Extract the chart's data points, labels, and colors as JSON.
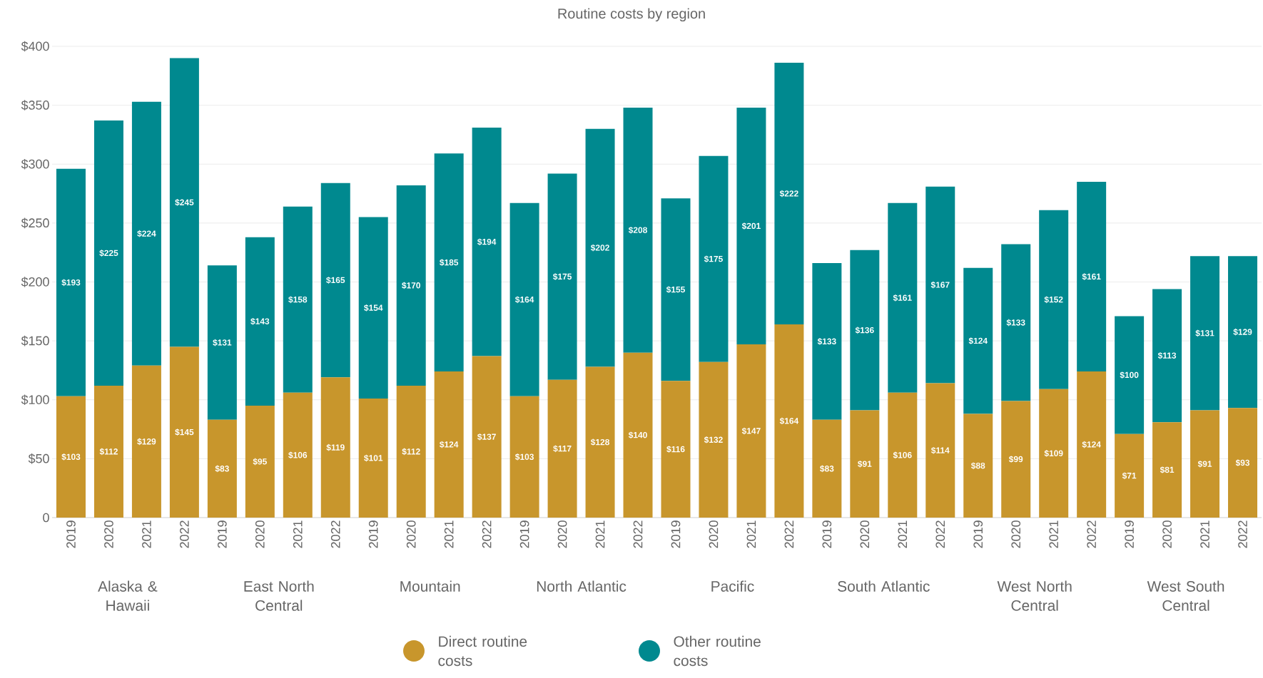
{
  "chart_data": {
    "type": "bar",
    "title": "Routine costs by region",
    "stacked": true,
    "grid": "y",
    "legend": "bottom",
    "categories": [
      "2019",
      "2020",
      "2021",
      "2022",
      "2019",
      "2020",
      "2021",
      "2022",
      "2019",
      "2020",
      "2021",
      "2022",
      "2019",
      "2020",
      "2021",
      "2022",
      "2019",
      "2020",
      "2021",
      "2022",
      "2019",
      "2020",
      "2021",
      "2022",
      "2019",
      "2020",
      "2021",
      "2022",
      "2019",
      "2020",
      "2021",
      "2022"
    ],
    "annotations": [
      "Alaska & Hawaii",
      "East North Central",
      "Mountain",
      "North Atlantic",
      "Pacific",
      "South Atlantic",
      "West North Central",
      "West South Central"
    ],
    "ylim": [
      0,
      400
    ],
    "yticks": [
      0,
      {
        "value": 50,
        "label": "$50"
      },
      {
        "value": 100,
        "label": "$100"
      },
      {
        "value": 150,
        "label": "$150"
      },
      {
        "value": 200,
        "label": "$200"
      },
      {
        "value": 250,
        "label": "$250"
      },
      {
        "value": 300,
        "label": "$300"
      },
      {
        "value": 350,
        "label": "$350"
      },
      {
        "value": 400,
        "label": "$400"
      }
    ],
    "series": [
      {
        "name": "Direct routine costs",
        "color": "#c8962c",
        "values": [
          103,
          112,
          129,
          145,
          83,
          95,
          106,
          119,
          101,
          112,
          124,
          137,
          103,
          117,
          128,
          140,
          116,
          132,
          147,
          164,
          83,
          91,
          106,
          114,
          88,
          99,
          109,
          124,
          71,
          81,
          91,
          93
        ],
        "value_labels": [
          "$103",
          "$112",
          "$129",
          "$145",
          "$83",
          "$95",
          "$106",
          "$119",
          "$101",
          "$112",
          "$124",
          "$137",
          "$103",
          "$117",
          "$128",
          "$140",
          "$116",
          "$132",
          "$147",
          "$164",
          "$83",
          "$91",
          "$106",
          "$114",
          "$88",
          "$99",
          "$109",
          "$124",
          "$71",
          "$81",
          "$91",
          "$93"
        ]
      },
      {
        "name": "Other routine costs",
        "color": "#00898f",
        "values": [
          193,
          225,
          224,
          245,
          131,
          143,
          158,
          165,
          154,
          170,
          185,
          194,
          164,
          175,
          202,
          208,
          155,
          175,
          201,
          222,
          133,
          136,
          161,
          167,
          124,
          133,
          152,
          161,
          100,
          113,
          131,
          129
        ],
        "value_labels": [
          "$193",
          "$225",
          "$224",
          "$245",
          "$131",
          "$143",
          "$158",
          "$165",
          "$154",
          "$170",
          "$185",
          "$194",
          "$164",
          "$175",
          "$202",
          "$208",
          "$155",
          "$175",
          "$201",
          "$222",
          "$133",
          "$136",
          "$161",
          "$167",
          "$124",
          "$133",
          "$152",
          "$161",
          "$100",
          "$113",
          "$131",
          "$129"
        ]
      }
    ]
  }
}
